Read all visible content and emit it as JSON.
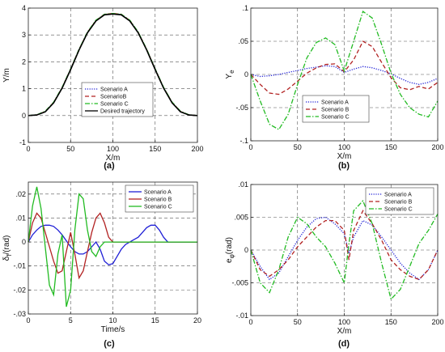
{
  "chart_data": [
    {
      "type": "line",
      "caption": "(a)",
      "xlabel": "X/m",
      "ylabel": "Y/m",
      "xlim": [
        0,
        200
      ],
      "ylim": [
        -1,
        4
      ],
      "xticks": [
        0,
        50,
        100,
        150,
        200
      ],
      "yticks": [
        -1,
        0,
        1,
        2,
        3,
        4
      ],
      "grid": true,
      "legend_position": "center",
      "series": [
        {
          "name": "Scenario A",
          "color": "#1f1fd6",
          "style": "dotted",
          "x": [
            0,
            10,
            20,
            30,
            40,
            50,
            60,
            70,
            80,
            90,
            100,
            110,
            120,
            130,
            140,
            150,
            160,
            170,
            180,
            190,
            200
          ],
          "y": [
            0,
            0.02,
            0.14,
            0.48,
            1.03,
            1.72,
            2.45,
            3.09,
            3.53,
            3.76,
            3.79,
            3.76,
            3.53,
            3.09,
            2.45,
            1.72,
            1.03,
            0.48,
            0.14,
            0.02,
            0
          ]
        },
        {
          "name": "ScenarioB",
          "color": "#b22222",
          "style": "dashed",
          "x": [
            0,
            10,
            20,
            30,
            40,
            50,
            60,
            70,
            80,
            90,
            100,
            110,
            120,
            130,
            140,
            150,
            160,
            170,
            180,
            190,
            200
          ],
          "y": [
            0,
            0.02,
            0.15,
            0.49,
            1.04,
            1.73,
            2.46,
            3.1,
            3.54,
            3.77,
            3.8,
            3.77,
            3.54,
            3.1,
            2.46,
            1.73,
            1.04,
            0.49,
            0.15,
            0.02,
            0
          ]
        },
        {
          "name": "Scenario C",
          "color": "#22bb22",
          "style": "dashdot",
          "x": [
            0,
            10,
            20,
            30,
            40,
            50,
            60,
            70,
            80,
            90,
            100,
            110,
            120,
            130,
            140,
            150,
            160,
            170,
            180,
            190,
            200
          ],
          "y": [
            0,
            0.03,
            0.16,
            0.5,
            1.05,
            1.74,
            2.47,
            3.11,
            3.55,
            3.77,
            3.8,
            3.77,
            3.55,
            3.11,
            2.47,
            1.74,
            1.05,
            0.5,
            0.16,
            0.03,
            0
          ]
        },
        {
          "name": "Desired trajectory",
          "color": "#000000",
          "style": "solid",
          "x": [
            0,
            10,
            20,
            30,
            40,
            50,
            60,
            70,
            80,
            90,
            100,
            110,
            120,
            130,
            140,
            150,
            160,
            170,
            180,
            190,
            200
          ],
          "y": [
            0,
            0.02,
            0.14,
            0.47,
            1.02,
            1.71,
            2.44,
            3.08,
            3.52,
            3.75,
            3.78,
            3.75,
            3.52,
            3.08,
            2.44,
            1.71,
            1.02,
            0.47,
            0.14,
            0.02,
            0
          ]
        }
      ]
    },
    {
      "type": "line",
      "caption": "(b)",
      "xlabel": "X/m",
      "ylabel": "Y_e",
      "xlim": [
        0,
        200
      ],
      "ylim": [
        -0.1,
        0.1
      ],
      "xticks": [
        0,
        50,
        100,
        150,
        200
      ],
      "yticks": [
        -0.1,
        -0.05,
        0,
        0.05,
        0.1
      ],
      "grid": true,
      "legend_position": "bottom-center",
      "series": [
        {
          "name": "Scenario A",
          "color": "#1f1fd6",
          "style": "dotted",
          "x": [
            0,
            10,
            20,
            30,
            40,
            50,
            60,
            70,
            80,
            90,
            100,
            110,
            120,
            130,
            140,
            150,
            160,
            170,
            180,
            190,
            200
          ],
          "y": [
            0,
            -0.003,
            -0.002,
            0,
            0.003,
            0.006,
            0.009,
            0.011,
            0.013,
            0.012,
            0.003,
            0.008,
            0.012,
            0.01,
            0.006,
            0.001,
            -0.006,
            -0.012,
            -0.015,
            -0.012,
            -0.006
          ]
        },
        {
          "name": "Scenario B",
          "color": "#b22222",
          "style": "dashed",
          "x": [
            0,
            10,
            20,
            30,
            40,
            50,
            60,
            70,
            80,
            90,
            100,
            110,
            120,
            130,
            140,
            150,
            160,
            170,
            180,
            190,
            200
          ],
          "y": [
            0,
            -0.015,
            -0.028,
            -0.03,
            -0.022,
            -0.01,
            0.002,
            0.01,
            0.015,
            0.016,
            0.004,
            0.022,
            0.05,
            0.042,
            0.018,
            -0.005,
            -0.02,
            -0.023,
            -0.018,
            -0.022,
            -0.012
          ]
        },
        {
          "name": "Scenario C",
          "color": "#22bb22",
          "style": "dashdot",
          "x": [
            0,
            10,
            20,
            30,
            40,
            50,
            60,
            70,
            80,
            90,
            100,
            110,
            120,
            130,
            140,
            150,
            160,
            170,
            180,
            190,
            200
          ],
          "y": [
            0,
            -0.04,
            -0.075,
            -0.083,
            -0.06,
            -0.015,
            0.025,
            0.048,
            0.055,
            0.045,
            0.005,
            0.05,
            0.095,
            0.085,
            0.045,
            0.002,
            -0.03,
            -0.05,
            -0.06,
            -0.064,
            -0.04
          ]
        }
      ]
    },
    {
      "type": "line",
      "caption": "(c)",
      "xlabel": "Time/s",
      "ylabel": "δ_f/(rad)",
      "xlim": [
        0,
        20
      ],
      "ylim": [
        -0.03,
        0.025
      ],
      "xticks": [
        0,
        5,
        10,
        15,
        20
      ],
      "yticks": [
        -0.03,
        -0.02,
        -0.01,
        0,
        0.01,
        0.02
      ],
      "grid": true,
      "legend_position": "top-right",
      "series": [
        {
          "name": "Scenario A",
          "color": "#1f1fd6",
          "style": "solid",
          "x": [
            0,
            0.5,
            1,
            1.5,
            2,
            2.5,
            3,
            3.5,
            4,
            4.5,
            5,
            5.5,
            6,
            6.5,
            7,
            7.5,
            8,
            8.5,
            9,
            9.5,
            10,
            10.5,
            11,
            11.5,
            12,
            12.5,
            13,
            13.5,
            14,
            14.5,
            15,
            15.5,
            16,
            16.5,
            17,
            17.5,
            18,
            18.5,
            19,
            19.5,
            20
          ],
          "y": [
            0,
            0.003,
            0.005,
            0.0065,
            0.007,
            0.007,
            0.0065,
            0.005,
            0.003,
            0.0005,
            -0.002,
            -0.004,
            -0.005,
            -0.005,
            -0.004,
            -0.002,
            0,
            -0.003,
            -0.008,
            -0.0095,
            -0.009,
            -0.006,
            -0.003,
            -0.001,
            0,
            0.001,
            0.002,
            0.004,
            0.006,
            0.007,
            0.007,
            0.005,
            0.002,
            0,
            0,
            0,
            0,
            0,
            0,
            0,
            0
          ]
        },
        {
          "name": "Scenario B",
          "color": "#b22222",
          "style": "solid",
          "x": [
            0,
            0.5,
            1,
            1.5,
            2,
            2.5,
            3,
            3.5,
            4,
            4.5,
            5,
            5.5,
            6,
            6.5,
            7,
            7.5,
            8,
            8.5,
            9,
            9.5,
            10,
            10.5,
            11,
            11.5,
            12,
            12.5,
            13,
            13.5,
            14,
            14.5,
            15,
            15.5,
            16,
            16.5,
            17,
            17.5,
            18,
            18.5,
            19,
            19.5,
            20
          ],
          "y": [
            0,
            0.008,
            0.012,
            0.01,
            0.004,
            -0.002,
            -0.008,
            -0.013,
            -0.012,
            -0.004,
            0.004,
            -0.005,
            -0.015,
            -0.012,
            -0.004,
            0.004,
            0.01,
            0.012,
            0.008,
            0.002,
            0,
            0,
            0,
            0,
            0,
            0,
            0,
            0,
            0,
            0,
            0,
            0,
            0,
            0,
            0,
            0,
            0,
            0,
            0,
            0,
            0
          ]
        },
        {
          "name": "Scenario C",
          "color": "#22bb22",
          "style": "solid",
          "x": [
            0,
            0.5,
            1,
            1.5,
            2,
            2.5,
            3,
            3.5,
            4,
            4.5,
            5,
            5.5,
            6,
            6.5,
            7,
            7.5,
            8,
            8.5,
            9,
            9.5,
            10,
            10.5,
            11,
            11.5,
            12,
            12.5,
            13,
            13.5,
            14,
            14.5,
            15,
            15.5,
            16,
            16.5,
            17,
            17.5,
            18,
            18.5,
            19,
            19.5,
            20
          ],
          "y": [
            0,
            0.015,
            0.023,
            0.014,
            -0.002,
            -0.018,
            -0.022,
            -0.005,
            0.003,
            -0.027,
            -0.02,
            0.005,
            0.02,
            0.018,
            0.005,
            -0.004,
            -0.006,
            -0.002,
            0,
            0,
            0,
            0,
            0,
            0,
            0,
            0,
            0,
            0,
            0,
            0,
            0,
            0,
            0,
            0,
            0,
            0,
            0,
            0,
            0,
            0,
            0
          ]
        }
      ]
    },
    {
      "type": "line",
      "caption": "(d)",
      "xlabel": "X/m",
      "ylabel": "e_φ(rad)",
      "xlim": [
        0,
        200
      ],
      "ylim": [
        -0.01,
        0.01
      ],
      "xticks": [
        0,
        50,
        100,
        150,
        200
      ],
      "yticks": [
        -0.01,
        -0.005,
        0,
        0.005,
        0.01
      ],
      "grid": true,
      "legend_position": "top-right",
      "series": [
        {
          "name": "Scenario A",
          "color": "#1f1fd6",
          "style": "dotted",
          "x": [
            0,
            10,
            20,
            30,
            40,
            50,
            60,
            70,
            80,
            90,
            100,
            105,
            110,
            120,
            130,
            140,
            150,
            160,
            170,
            180,
            190,
            200
          ],
          "y": [
            0,
            -0.0025,
            -0.0045,
            -0.0035,
            -0.001,
            0.0015,
            0.0035,
            0.0048,
            0.005,
            0.004,
            0.0025,
            -0.0005,
            0.002,
            0.0045,
            0.0038,
            0.002,
            0,
            -0.002,
            -0.0035,
            -0.0045,
            -0.003,
            0
          ]
        },
        {
          "name": "Scenario B",
          "color": "#b22222",
          "style": "dashed",
          "x": [
            0,
            10,
            20,
            30,
            40,
            50,
            60,
            70,
            80,
            90,
            100,
            105,
            110,
            120,
            130,
            140,
            150,
            160,
            170,
            180,
            190,
            200
          ],
          "y": [
            0,
            -0.003,
            -0.004,
            -0.003,
            -0.0015,
            0.0005,
            0.002,
            0.0035,
            0.0045,
            0.0045,
            0.003,
            -0.0015,
            0.003,
            0.006,
            0.004,
            0.0015,
            -0.0015,
            -0.003,
            -0.004,
            -0.0045,
            -0.003,
            0
          ]
        },
        {
          "name": "Scenario C",
          "color": "#22bb22",
          "style": "dashdot",
          "x": [
            0,
            10,
            20,
            30,
            40,
            50,
            60,
            70,
            80,
            90,
            100,
            105,
            110,
            120,
            130,
            140,
            150,
            160,
            170,
            180,
            190,
            200
          ],
          "y": [
            0,
            -0.005,
            -0.0065,
            -0.003,
            0.002,
            0.005,
            0.004,
            0.002,
            0.0005,
            -0.002,
            -0.005,
            0.001,
            0.006,
            0.0075,
            0.004,
            -0.002,
            -0.0075,
            -0.006,
            -0.0025,
            0.001,
            0.003,
            0.0055
          ]
        }
      ]
    }
  ]
}
